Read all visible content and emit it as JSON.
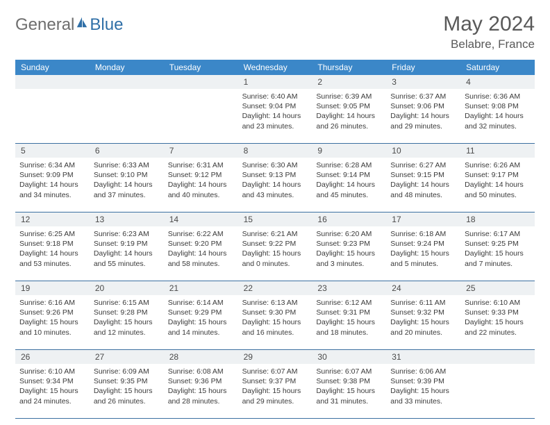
{
  "logo": {
    "general": "General",
    "blue": "Blue"
  },
  "title": "May 2024",
  "location": "Belabre, France",
  "colors": {
    "header_bg": "#3b87c8",
    "header_text": "#ffffff",
    "daynum_bg": "#eef1f3",
    "border": "#3b6fa0",
    "text": "#3a3a3a",
    "title_text": "#595959"
  },
  "day_names": [
    "Sunday",
    "Monday",
    "Tuesday",
    "Wednesday",
    "Thursday",
    "Friday",
    "Saturday"
  ],
  "weeks": [
    [
      null,
      null,
      null,
      {
        "d": "1",
        "sr": "6:40 AM",
        "ss": "9:04 PM",
        "dl": "14 hours and 23 minutes."
      },
      {
        "d": "2",
        "sr": "6:39 AM",
        "ss": "9:05 PM",
        "dl": "14 hours and 26 minutes."
      },
      {
        "d": "3",
        "sr": "6:37 AM",
        "ss": "9:06 PM",
        "dl": "14 hours and 29 minutes."
      },
      {
        "d": "4",
        "sr": "6:36 AM",
        "ss": "9:08 PM",
        "dl": "14 hours and 32 minutes."
      }
    ],
    [
      {
        "d": "5",
        "sr": "6:34 AM",
        "ss": "9:09 PM",
        "dl": "14 hours and 34 minutes."
      },
      {
        "d": "6",
        "sr": "6:33 AM",
        "ss": "9:10 PM",
        "dl": "14 hours and 37 minutes."
      },
      {
        "d": "7",
        "sr": "6:31 AM",
        "ss": "9:12 PM",
        "dl": "14 hours and 40 minutes."
      },
      {
        "d": "8",
        "sr": "6:30 AM",
        "ss": "9:13 PM",
        "dl": "14 hours and 43 minutes."
      },
      {
        "d": "9",
        "sr": "6:28 AM",
        "ss": "9:14 PM",
        "dl": "14 hours and 45 minutes."
      },
      {
        "d": "10",
        "sr": "6:27 AM",
        "ss": "9:15 PM",
        "dl": "14 hours and 48 minutes."
      },
      {
        "d": "11",
        "sr": "6:26 AM",
        "ss": "9:17 PM",
        "dl": "14 hours and 50 minutes."
      }
    ],
    [
      {
        "d": "12",
        "sr": "6:25 AM",
        "ss": "9:18 PM",
        "dl": "14 hours and 53 minutes."
      },
      {
        "d": "13",
        "sr": "6:23 AM",
        "ss": "9:19 PM",
        "dl": "14 hours and 55 minutes."
      },
      {
        "d": "14",
        "sr": "6:22 AM",
        "ss": "9:20 PM",
        "dl": "14 hours and 58 minutes."
      },
      {
        "d": "15",
        "sr": "6:21 AM",
        "ss": "9:22 PM",
        "dl": "15 hours and 0 minutes."
      },
      {
        "d": "16",
        "sr": "6:20 AM",
        "ss": "9:23 PM",
        "dl": "15 hours and 3 minutes."
      },
      {
        "d": "17",
        "sr": "6:18 AM",
        "ss": "9:24 PM",
        "dl": "15 hours and 5 minutes."
      },
      {
        "d": "18",
        "sr": "6:17 AM",
        "ss": "9:25 PM",
        "dl": "15 hours and 7 minutes."
      }
    ],
    [
      {
        "d": "19",
        "sr": "6:16 AM",
        "ss": "9:26 PM",
        "dl": "15 hours and 10 minutes."
      },
      {
        "d": "20",
        "sr": "6:15 AM",
        "ss": "9:28 PM",
        "dl": "15 hours and 12 minutes."
      },
      {
        "d": "21",
        "sr": "6:14 AM",
        "ss": "9:29 PM",
        "dl": "15 hours and 14 minutes."
      },
      {
        "d": "22",
        "sr": "6:13 AM",
        "ss": "9:30 PM",
        "dl": "15 hours and 16 minutes."
      },
      {
        "d": "23",
        "sr": "6:12 AM",
        "ss": "9:31 PM",
        "dl": "15 hours and 18 minutes."
      },
      {
        "d": "24",
        "sr": "6:11 AM",
        "ss": "9:32 PM",
        "dl": "15 hours and 20 minutes."
      },
      {
        "d": "25",
        "sr": "6:10 AM",
        "ss": "9:33 PM",
        "dl": "15 hours and 22 minutes."
      }
    ],
    [
      {
        "d": "26",
        "sr": "6:10 AM",
        "ss": "9:34 PM",
        "dl": "15 hours and 24 minutes."
      },
      {
        "d": "27",
        "sr": "6:09 AM",
        "ss": "9:35 PM",
        "dl": "15 hours and 26 minutes."
      },
      {
        "d": "28",
        "sr": "6:08 AM",
        "ss": "9:36 PM",
        "dl": "15 hours and 28 minutes."
      },
      {
        "d": "29",
        "sr": "6:07 AM",
        "ss": "9:37 PM",
        "dl": "15 hours and 29 minutes."
      },
      {
        "d": "30",
        "sr": "6:07 AM",
        "ss": "9:38 PM",
        "dl": "15 hours and 31 minutes."
      },
      {
        "d": "31",
        "sr": "6:06 AM",
        "ss": "9:39 PM",
        "dl": "15 hours and 33 minutes."
      },
      null
    ]
  ],
  "labels": {
    "sunrise": "Sunrise:",
    "sunset": "Sunset:",
    "daylight": "Daylight:"
  }
}
